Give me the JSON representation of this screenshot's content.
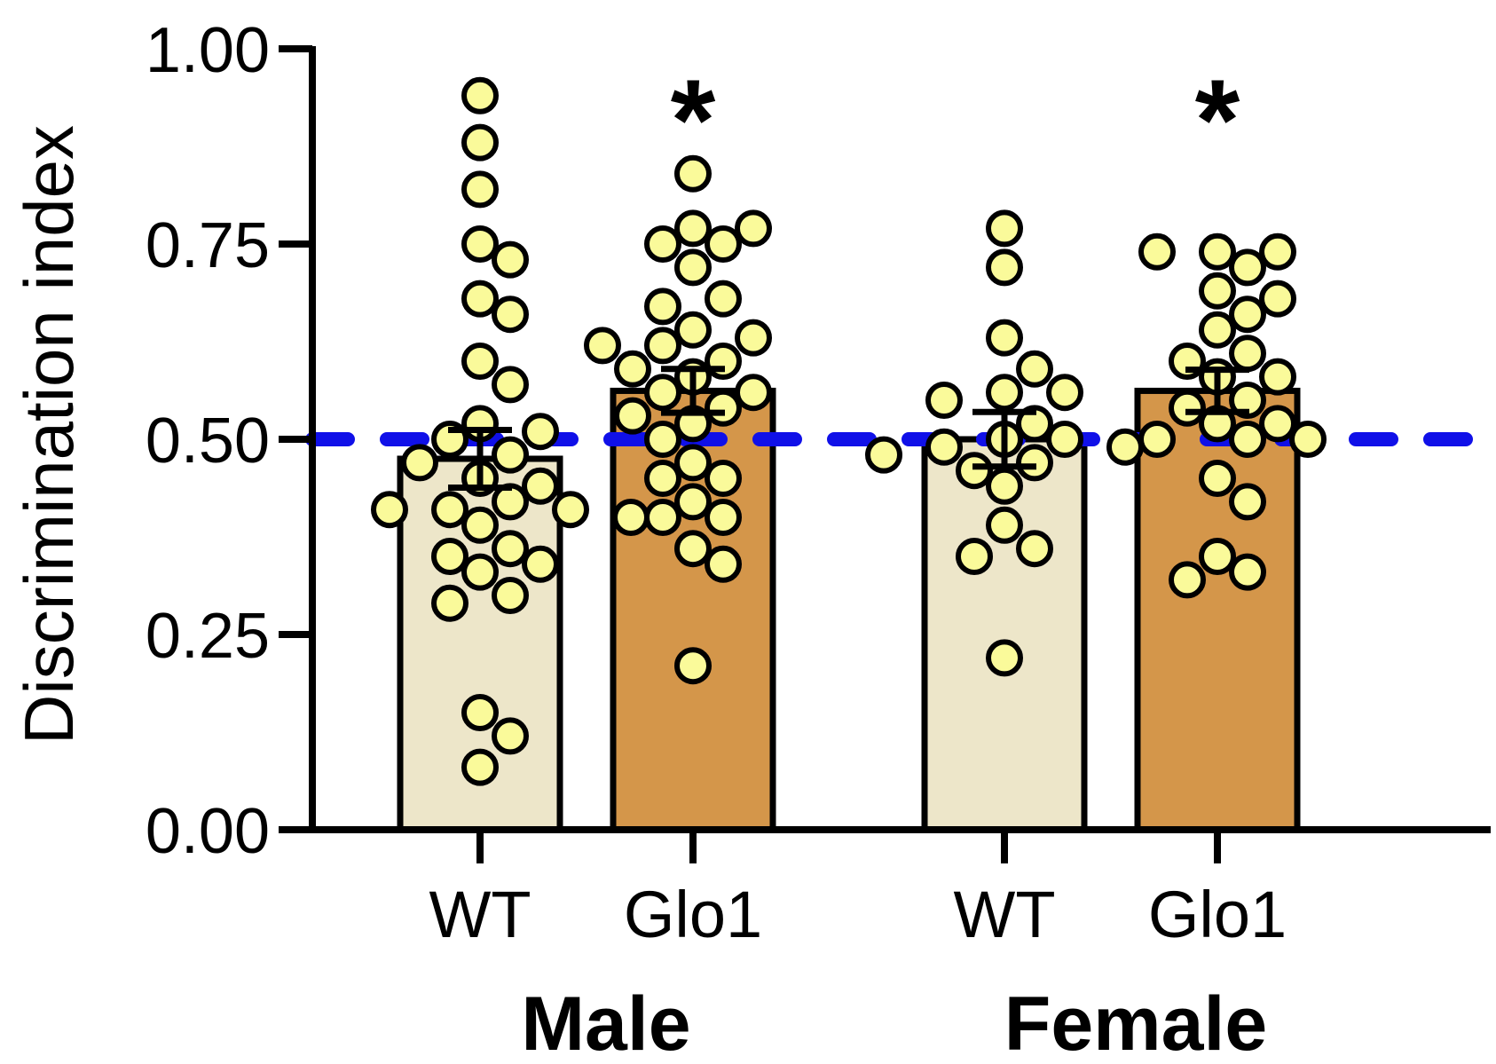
{
  "chart_data": {
    "type": "bar",
    "ylabel": "Discrimination index",
    "ylim": [
      0,
      1
    ],
    "yticks": [
      "0.00",
      "0.25",
      "0.50",
      "0.75",
      "1.00"
    ],
    "reference_line": {
      "value": 0.5,
      "color": "#1010e8",
      "style": "dashed"
    },
    "groups": [
      {
        "label": "Male",
        "categories": [
          "WT",
          "Glo1"
        ]
      },
      {
        "label": "Female",
        "categories": [
          "WT",
          "Glo1"
        ]
      }
    ],
    "bars": [
      {
        "group": "Male",
        "category": "WT",
        "mean": 0.475,
        "sem": 0.037,
        "fill": "#ede6c9",
        "significance": "",
        "points": [
          0.94,
          0.88,
          0.82,
          0.75,
          0.73,
          0.68,
          0.66,
          0.6,
          0.57,
          0.52,
          0.51,
          0.5,
          0.48,
          0.47,
          0.45,
          0.44,
          0.42,
          0.41,
          0.41,
          0.41,
          0.4,
          0.39,
          0.36,
          0.35,
          0.34,
          0.33,
          0.3,
          0.29,
          0.15,
          0.12,
          0.08
        ]
      },
      {
        "group": "Male",
        "category": "Glo1",
        "mean": 0.562,
        "sem": 0.028,
        "fill": "#d4964a",
        "significance": "*",
        "points": [
          0.84,
          0.77,
          0.77,
          0.75,
          0.75,
          0.72,
          0.68,
          0.67,
          0.64,
          0.63,
          0.62,
          0.62,
          0.6,
          0.59,
          0.58,
          0.56,
          0.56,
          0.54,
          0.53,
          0.52,
          0.5,
          0.47,
          0.45,
          0.45,
          0.42,
          0.4,
          0.4,
          0.36,
          0.34,
          0.21
        ]
      },
      {
        "group": "Female",
        "category": "WT",
        "mean": 0.5,
        "sem": 0.035,
        "fill": "#ede6c9",
        "significance": "",
        "points": [
          0.77,
          0.72,
          0.63,
          0.59,
          0.56,
          0.56,
          0.55,
          0.52,
          0.5,
          0.5,
          0.49,
          0.49,
          0.48,
          0.47,
          0.46,
          0.44,
          0.39,
          0.36,
          0.35,
          0.22
        ]
      },
      {
        "group": "Female",
        "category": "Glo1",
        "mean": 0.562,
        "sem": 0.027,
        "fill": "#d4964a",
        "significance": "*",
        "points": [
          0.74,
          0.74,
          0.74,
          0.72,
          0.69,
          0.68,
          0.66,
          0.64,
          0.61,
          0.6,
          0.58,
          0.58,
          0.55,
          0.54,
          0.52,
          0.52,
          0.5,
          0.5,
          0.5,
          0.45,
          0.42,
          0.35,
          0.33,
          0.32
        ]
      }
    ]
  }
}
